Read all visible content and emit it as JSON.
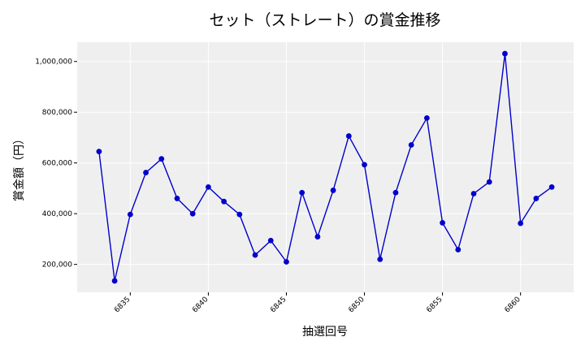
{
  "chart_data": {
    "type": "line",
    "title": "セット（ストレート）の賞金推移",
    "xlabel": "抽選回号",
    "ylabel": "賞金額（円）",
    "x": [
      6833,
      6834,
      6835,
      6836,
      6837,
      6838,
      6839,
      6840,
      6841,
      6842,
      6843,
      6844,
      6845,
      6846,
      6847,
      6848,
      6849,
      6850,
      6851,
      6852,
      6853,
      6854,
      6855,
      6856,
      6857,
      6858,
      6859,
      6860,
      6861,
      6862
    ],
    "series": [
      {
        "values": [
          645000,
          135000,
          397000,
          562000,
          616000,
          460000,
          400000,
          505000,
          448000,
          397000,
          237000,
          294000,
          210000,
          483000,
          309000,
          492000,
          706000,
          593000,
          220000,
          483000,
          671000,
          777000,
          364000,
          258000,
          479000,
          525000,
          1031000,
          362000,
          460000,
          505000
        ],
        "color": "#0000cc"
      }
    ],
    "xticks": [
      6835,
      6840,
      6845,
      6850,
      6855,
      6860
    ],
    "xtick_labels": [
      "6835",
      "6840",
      "6845",
      "6850",
      "6855",
      "6860"
    ],
    "yticks": [
      200000,
      400000,
      600000,
      800000,
      1000000
    ],
    "ytick_labels": [
      "200,000",
      "400,000",
      "600,000",
      "800,000",
      "1,000,000"
    ],
    "xlim": [
      6831.6,
      6863.4
    ],
    "ylim": [
      90000,
      1076000
    ],
    "grid": true,
    "plot_background": "#efefef",
    "grid_color": "#ffffff"
  }
}
